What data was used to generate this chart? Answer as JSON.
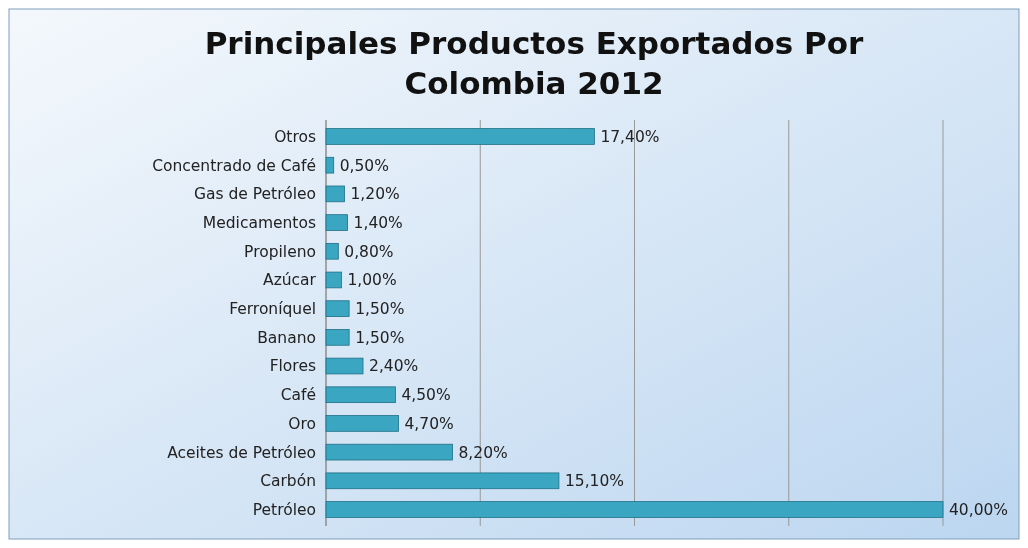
{
  "chart_data": {
    "type": "bar",
    "orientation": "horizontal",
    "title": "Principales Productos Exportados Por Colombia 2012",
    "categories": [
      "Otros",
      "Concentrado de Café",
      "Gas de Petróleo",
      "Medicamentos",
      "Propileno",
      "Azúcar",
      "Ferroníquel",
      "Banano",
      "Flores",
      "Café",
      "Oro",
      "Aceites de Petróleo",
      "Carbón",
      "Petróleo"
    ],
    "values": [
      17.4,
      0.5,
      1.2,
      1.4,
      0.8,
      1.0,
      1.5,
      1.5,
      2.4,
      4.5,
      4.7,
      8.2,
      15.1,
      40.0
    ],
    "value_labels": [
      "17,40%",
      "0,50%",
      "1,20%",
      "1,40%",
      "0,80%",
      "1,00%",
      "1,50%",
      "1,50%",
      "2,40%",
      "4,50%",
      "4,70%",
      "8,20%",
      "15,10%",
      "40,00%"
    ],
    "color": "#3aa6c2",
    "xlim": [
      0,
      40
    ],
    "xticks": [
      {
        "value": 0,
        "label": null
      },
      {
        "value": 10,
        "label": null
      },
      {
        "value": 20,
        "label": null
      },
      {
        "value": 30,
        "label": null
      },
      {
        "value": 40,
        "label": null
      }
    ],
    "grid": "x",
    "tick_labels": "y"
  }
}
